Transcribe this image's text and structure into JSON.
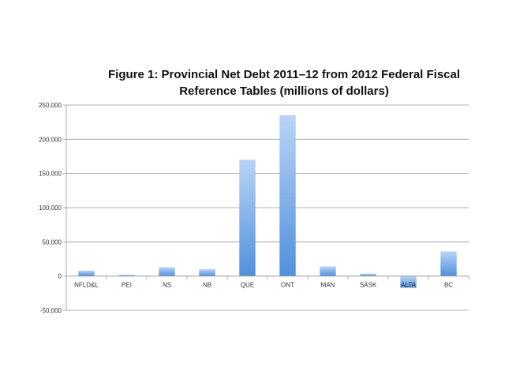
{
  "chart_data": {
    "type": "bar",
    "title_lines": [
      "Figure 1: Provincial Net Debt 2011–12 from 2012 Federal Fiscal",
      "Reference Tables  (millions of dollars)"
    ],
    "xlabel": "",
    "ylabel": "",
    "categories": [
      "NFLD&L",
      "PEI",
      "NS",
      "NB",
      "QUE",
      "ONT",
      "MAN",
      "SASK",
      "ALTA",
      "BC"
    ],
    "values": [
      8000,
      2000,
      13000,
      10000,
      170000,
      235000,
      14000,
      3500,
      -17000,
      36000
    ],
    "ylim": [
      -50000,
      250000
    ],
    "yticks": [
      250000,
      200000,
      150000,
      100000,
      50000,
      0,
      -50000
    ],
    "ytick_labels": [
      "250,000",
      "200,000",
      "150,000",
      "100,000",
      "50,000",
      "0",
      "-50,000"
    ],
    "grid": true,
    "legend": "none",
    "colors": {
      "bar_top": "#b9d4f6",
      "bar_bottom": "#4f90dc",
      "grid": "#9a9a9a",
      "axis": "#9a9a9a"
    }
  }
}
